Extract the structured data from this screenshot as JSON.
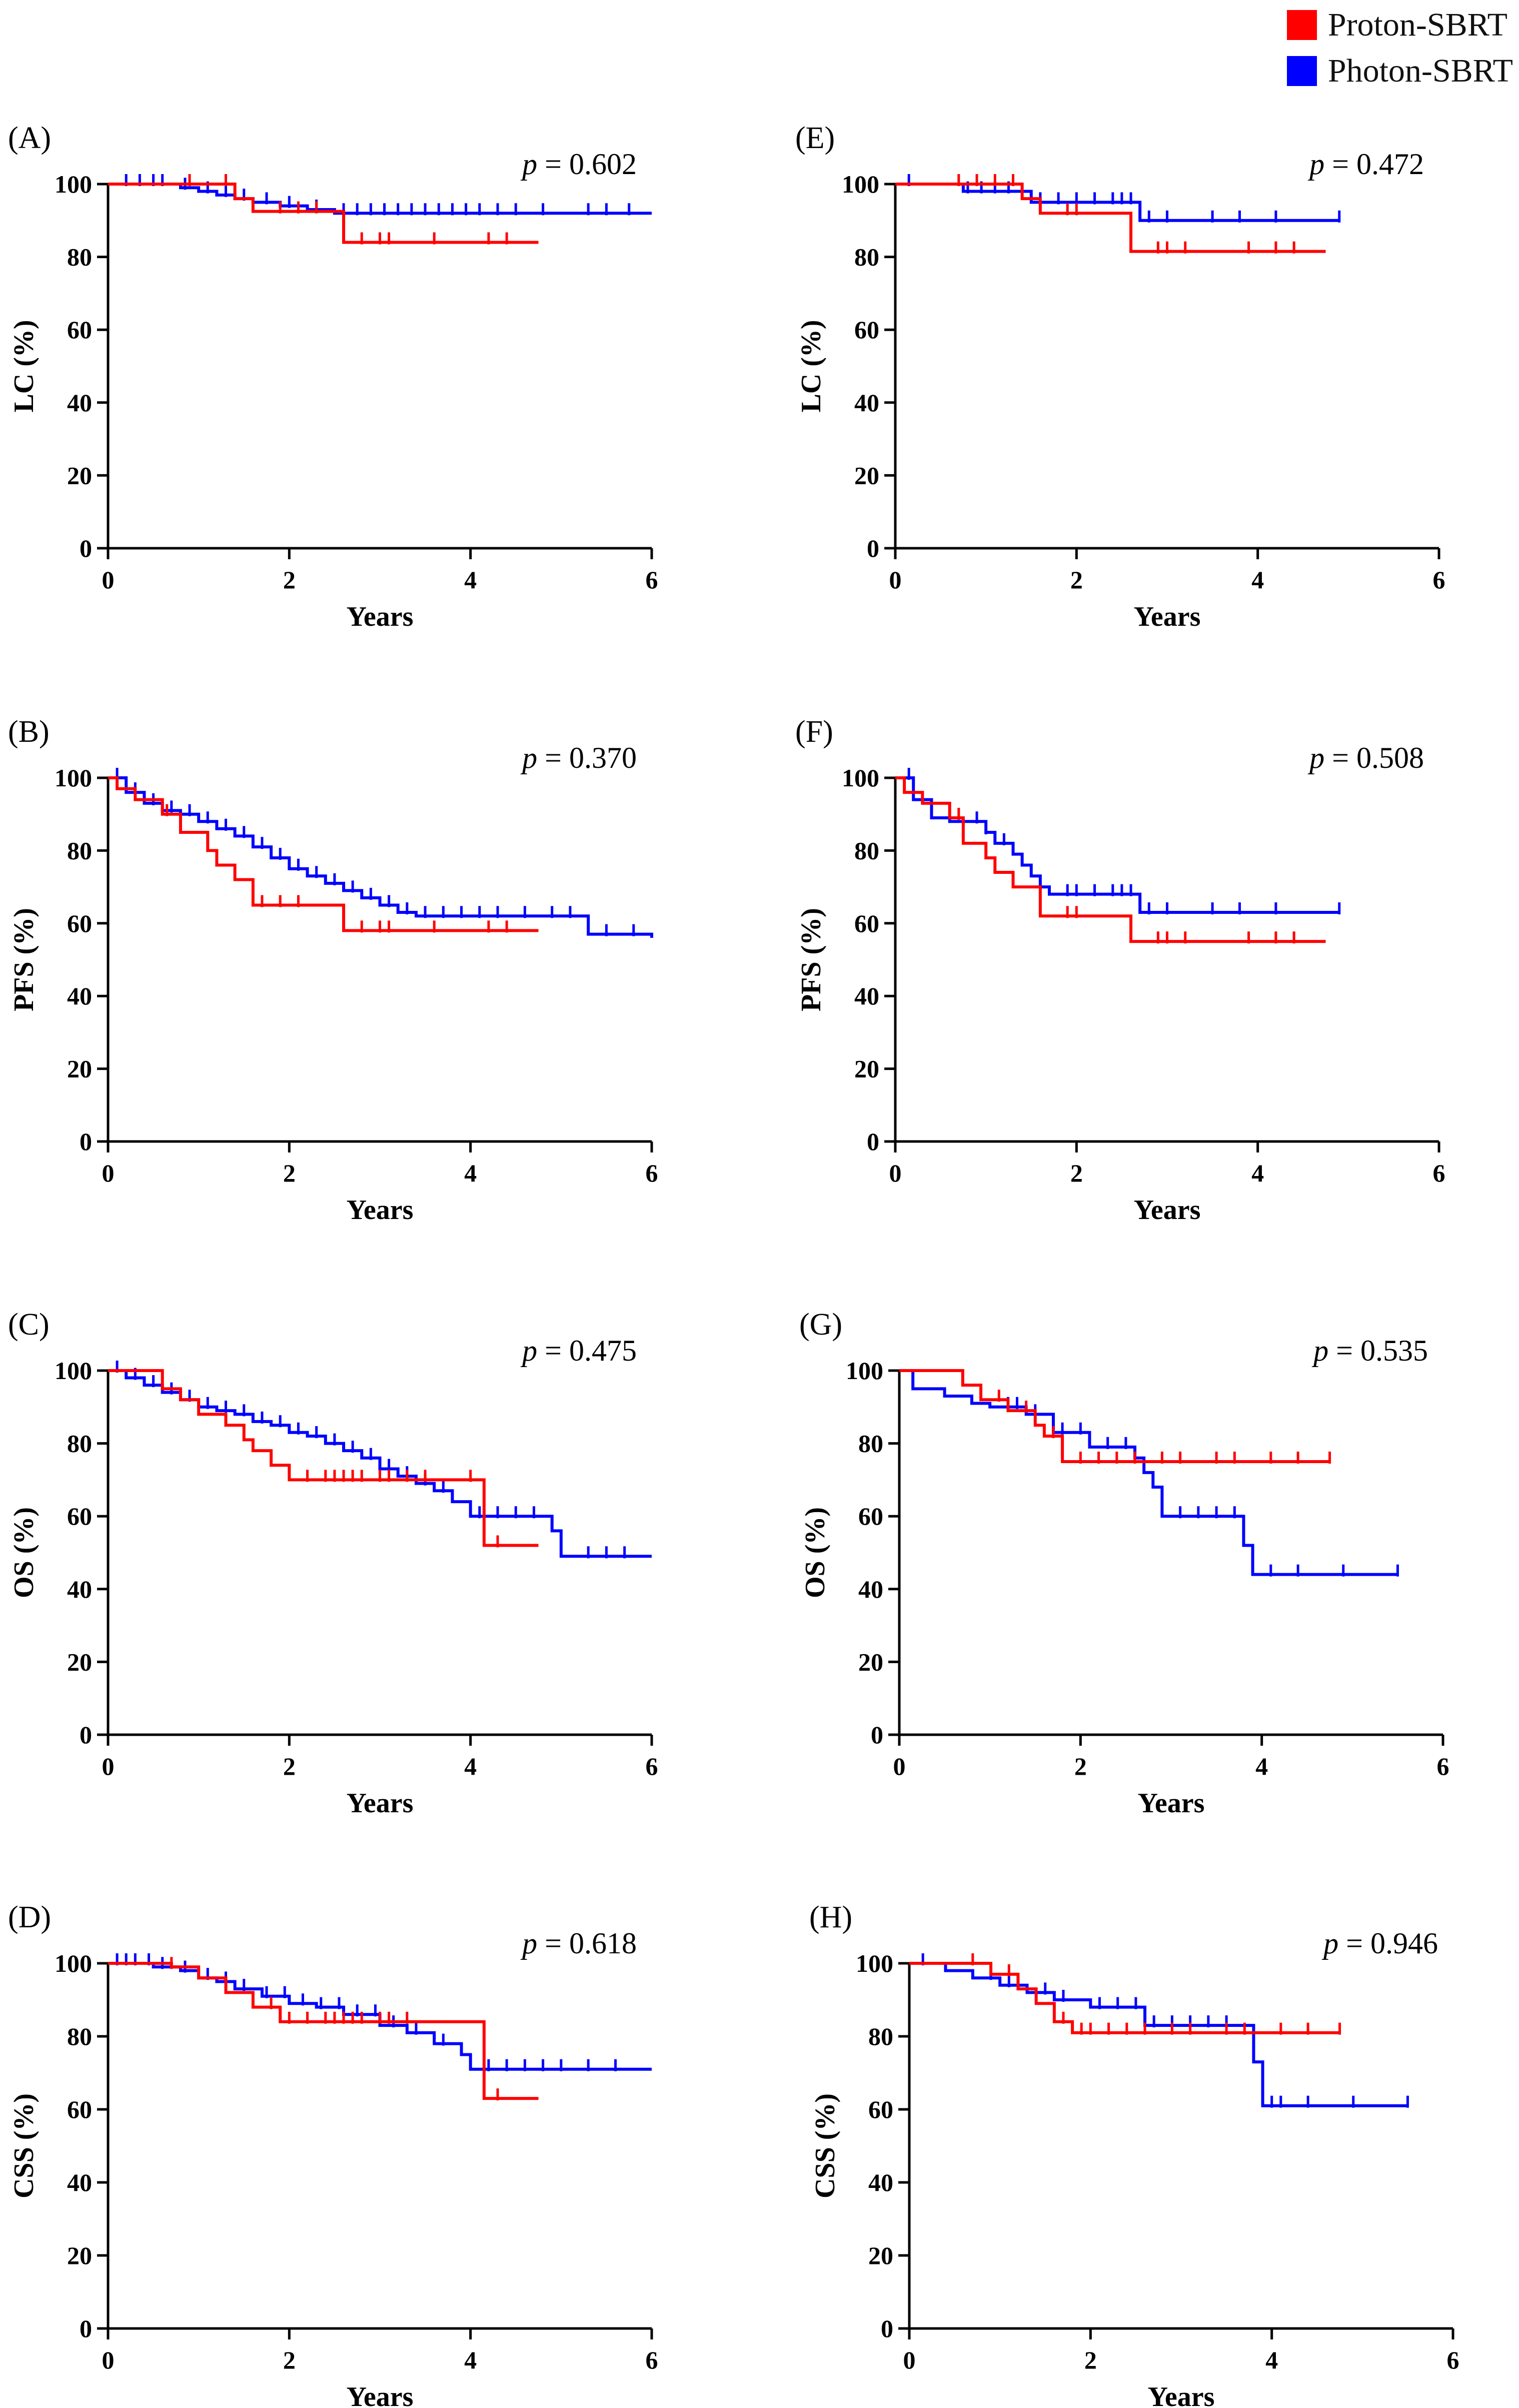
{
  "legend": [
    {
      "label": "Proton-SBRT",
      "color": "#ff0000"
    },
    {
      "label": "Photon-SBRT",
      "color": "#0000ff"
    }
  ],
  "colors": {
    "proton": "#ff0000",
    "photon": "#0000ff",
    "axis": "#000000"
  },
  "chart_data": [
    {
      "panel": "(A)",
      "type": "line",
      "subtype": "kaplan-meier",
      "p_prefix": "p",
      "p_value": "= 0.602",
      "xlabel": "Years",
      "ylabel": "LC (%)",
      "xlim": [
        0,
        6
      ],
      "ylim": [
        0,
        100
      ],
      "xticks": [
        "0",
        "2",
        "4",
        "6"
      ],
      "yticks": [
        "0",
        "20",
        "40",
        "60",
        "80",
        "100"
      ],
      "series": [
        {
          "name": "Proton-SBRT",
          "x": [
            0,
            1.4,
            1.6,
            2.6,
            4.75
          ],
          "y": [
            100,
            96,
            92.5,
            84,
            84
          ],
          "censor_x": [
            0.9,
            1.3,
            1.9,
            2.1,
            2.3,
            2.8,
            3.0,
            3.1,
            3.6,
            4.2,
            4.4
          ]
        },
        {
          "name": "Photon-SBRT",
          "x": [
            0,
            0.8,
            1.0,
            1.2,
            1.4,
            1.6,
            1.9,
            2.2,
            2.5,
            6.0
          ],
          "y": [
            100,
            99,
            98,
            97,
            96,
            95,
            94,
            93,
            92,
            92
          ],
          "censor_x": [
            0.2,
            0.35,
            0.5,
            0.6,
            0.85,
            1.1,
            1.3,
            1.5,
            1.75,
            2.0,
            2.3,
            2.6,
            2.75,
            2.9,
            3.05,
            3.2,
            3.35,
            3.5,
            3.65,
            3.8,
            3.95,
            4.1,
            4.3,
            4.5,
            4.8,
            5.3,
            5.5,
            5.75
          ]
        }
      ]
    },
    {
      "panel": "(B)",
      "type": "line",
      "subtype": "kaplan-meier",
      "p_prefix": "p",
      "p_value": "= 0.370",
      "xlabel": "Years",
      "ylabel": "PFS (%)",
      "xlim": [
        0,
        6
      ],
      "ylim": [
        0,
        100
      ],
      "xticks": [
        "0",
        "2",
        "4",
        "6"
      ],
      "yticks": [
        "0",
        "20",
        "40",
        "60",
        "80",
        "100"
      ],
      "series": [
        {
          "name": "Proton-SBRT",
          "x": [
            0,
            0.1,
            0.3,
            0.6,
            0.8,
            1.1,
            1.2,
            1.4,
            1.6,
            2.6,
            4.75
          ],
          "y": [
            100,
            97,
            94,
            90,
            85,
            80,
            76,
            72,
            65,
            58,
            58
          ],
          "censor_x": [
            0.65,
            1.7,
            1.9,
            2.1,
            2.8,
            3.0,
            3.1,
            3.6,
            4.2,
            4.4
          ]
        },
        {
          "name": "Photon-SBRT",
          "x": [
            0,
            0.2,
            0.4,
            0.6,
            0.8,
            1.0,
            1.2,
            1.4,
            1.6,
            1.8,
            2.0,
            2.2,
            2.4,
            2.6,
            2.8,
            3.0,
            3.2,
            3.4,
            5.3,
            6.0
          ],
          "y": [
            100,
            96,
            93,
            91,
            90,
            88,
            86,
            84,
            81,
            78,
            75,
            73,
            71,
            69,
            67,
            65,
            63,
            62,
            57,
            56
          ],
          "censor_x": [
            0.1,
            0.3,
            0.5,
            0.7,
            0.9,
            1.1,
            1.3,
            1.5,
            1.7,
            1.9,
            2.1,
            2.3,
            2.5,
            2.7,
            2.9,
            3.1,
            3.3,
            3.5,
            3.7,
            3.9,
            4.1,
            4.3,
            4.6,
            4.9,
            5.1,
            5.5,
            5.8
          ]
        }
      ]
    },
    {
      "panel": "(C)",
      "type": "line",
      "subtype": "kaplan-meier",
      "p_prefix": "p",
      "p_value": "= 0.475",
      "xlabel": "Years",
      "ylabel": "OS (%)",
      "xlim": [
        0,
        6
      ],
      "ylim": [
        0,
        100
      ],
      "xticks": [
        "0",
        "2",
        "4",
        "6"
      ],
      "yticks": [
        "0",
        "20",
        "40",
        "60",
        "80",
        "100"
      ],
      "series": [
        {
          "name": "Proton-SBRT",
          "x": [
            0,
            0.6,
            0.8,
            1.0,
            1.3,
            1.5,
            1.6,
            1.8,
            2.0,
            4.15,
            4.75
          ],
          "y": [
            100,
            95,
            92,
            88,
            85,
            81,
            78,
            74,
            70,
            52,
            52
          ],
          "censor_x": [
            2.2,
            2.4,
            2.5,
            2.6,
            2.7,
            2.8,
            3.0,
            3.1,
            3.3,
            3.5,
            4.0,
            4.3
          ]
        },
        {
          "name": "Photon-SBRT",
          "x": [
            0,
            0.2,
            0.4,
            0.6,
            0.8,
            1.0,
            1.2,
            1.4,
            1.6,
            1.8,
            2.0,
            2.2,
            2.4,
            2.6,
            2.8,
            3.0,
            3.2,
            3.4,
            3.6,
            3.8,
            4.0,
            4.9,
            5.0,
            6.0
          ],
          "y": [
            100,
            98,
            96,
            94,
            92,
            90,
            89,
            88,
            86,
            85,
            83,
            82,
            80,
            78,
            76,
            73,
            71,
            69,
            67,
            64,
            60,
            56,
            49,
            49
          ],
          "censor_x": [
            0.1,
            0.3,
            0.5,
            0.7,
            0.9,
            1.1,
            1.3,
            1.5,
            1.7,
            1.9,
            2.1,
            2.3,
            2.5,
            2.7,
            2.9,
            3.1,
            3.3,
            3.5,
            3.7,
            4.1,
            4.3,
            4.5,
            4.7,
            5.3,
            5.5,
            5.7
          ]
        }
      ]
    },
    {
      "panel": "(D)",
      "type": "line",
      "subtype": "kaplan-meier",
      "p_prefix": "p",
      "p_value": "= 0.618",
      "xlabel": "Years",
      "ylabel": "CSS (%)",
      "xlim": [
        0,
        6
      ],
      "ylim": [
        0,
        100
      ],
      "xticks": [
        "0",
        "2",
        "4",
        "6"
      ],
      "yticks": [
        "0",
        "20",
        "40",
        "60",
        "80",
        "100"
      ],
      "series": [
        {
          "name": "Proton-SBRT",
          "x": [
            0,
            0.7,
            1.0,
            1.3,
            1.6,
            1.9,
            4.15,
            4.75
          ],
          "y": [
            100,
            99,
            96,
            92,
            88,
            84,
            63,
            63
          ],
          "censor_x": [
            0.7,
            1.8,
            2.0,
            2.2,
            2.4,
            2.5,
            2.6,
            2.7,
            2.8,
            3.0,
            3.1,
            3.3,
            4.3
          ]
        },
        {
          "name": "Photon-SBRT",
          "x": [
            0,
            0.5,
            0.8,
            1.0,
            1.2,
            1.4,
            1.7,
            2.0,
            2.3,
            2.6,
            3.0,
            3.3,
            3.6,
            3.9,
            4.0,
            6.0
          ],
          "y": [
            100,
            99,
            98,
            96,
            95,
            93,
            91,
            89,
            88,
            86,
            83,
            81,
            78,
            75,
            71,
            71
          ],
          "censor_x": [
            0.1,
            0.2,
            0.3,
            0.45,
            0.6,
            0.85,
            1.1,
            1.3,
            1.5,
            1.75,
            1.95,
            2.15,
            2.35,
            2.55,
            2.75,
            2.95,
            3.15,
            3.4,
            3.7,
            4.2,
            4.4,
            4.6,
            4.8,
            5.0,
            5.3,
            5.6
          ]
        }
      ]
    },
    {
      "panel": "(E)",
      "type": "line",
      "subtype": "kaplan-meier",
      "p_prefix": "p",
      "p_value": "= 0.472",
      "xlabel": "Years",
      "ylabel": "LC (%)",
      "xlim": [
        0,
        6
      ],
      "ylim": [
        0,
        100
      ],
      "xticks": [
        "0",
        "2",
        "4",
        "6"
      ],
      "yticks": [
        "0",
        "20",
        "40",
        "60",
        "80",
        "100"
      ],
      "series": [
        {
          "name": "Proton-SBRT",
          "x": [
            0,
            1.4,
            1.6,
            2.6,
            4.75
          ],
          "y": [
            100,
            96,
            92,
            81.5,
            81.5
          ],
          "censor_x": [
            0.7,
            0.9,
            1.1,
            1.3,
            1.9,
            2.0,
            2.9,
            3.0,
            3.2,
            3.9,
            4.2,
            4.4
          ]
        },
        {
          "name": "Photon-SBRT",
          "x": [
            0,
            0.75,
            1.5,
            2.7,
            4.9
          ],
          "y": [
            100,
            98,
            95,
            90,
            90
          ],
          "censor_x": [
            0.15,
            0.8,
            0.95,
            1.1,
            1.25,
            1.6,
            1.8,
            2.0,
            2.2,
            2.4,
            2.5,
            2.6,
            2.8,
            3.0,
            3.5,
            3.8,
            4.2,
            4.9
          ]
        }
      ]
    },
    {
      "panel": "(F)",
      "type": "line",
      "subtype": "kaplan-meier",
      "p_prefix": "p",
      "p_value": "= 0.508",
      "xlabel": "Years",
      "ylabel": "PFS (%)",
      "xlim": [
        0,
        6
      ],
      "ylim": [
        0,
        100
      ],
      "xticks": [
        "0",
        "2",
        "4",
        "6"
      ],
      "yticks": [
        "0",
        "20",
        "40",
        "60",
        "80",
        "100"
      ],
      "series": [
        {
          "name": "Proton-SBRT",
          "x": [
            0,
            0.1,
            0.3,
            0.6,
            0.75,
            1.0,
            1.1,
            1.3,
            1.6,
            2.6,
            4.75
          ],
          "y": [
            100,
            96,
            93,
            89,
            82,
            78,
            74,
            70,
            62,
            55,
            55
          ],
          "censor_x": [
            0.7,
            1.9,
            2.0,
            2.9,
            3.0,
            3.2,
            3.9,
            4.2,
            4.4
          ]
        },
        {
          "name": "Photon-SBRT",
          "x": [
            0,
            0.2,
            0.4,
            0.6,
            1.0,
            1.1,
            1.3,
            1.4,
            1.5,
            1.6,
            1.7,
            2.7,
            4.9
          ],
          "y": [
            100,
            94,
            89,
            88,
            85,
            82,
            79,
            76,
            73,
            70,
            68,
            63,
            63
          ],
          "censor_x": [
            0.15,
            0.9,
            1.0,
            1.2,
            1.9,
            2.0,
            2.2,
            2.4,
            2.5,
            2.6,
            2.8,
            3.0,
            3.5,
            3.8,
            4.2,
            4.9
          ]
        }
      ]
    },
    {
      "panel": "(G)",
      "type": "line",
      "subtype": "kaplan-meier",
      "p_prefix": "p",
      "p_value": "= 0.535",
      "xlabel": "Years",
      "ylabel": "OS (%)",
      "xlim": [
        0,
        6
      ],
      "ylim": [
        0,
        100
      ],
      "xticks": [
        "0",
        "2",
        "4",
        "6"
      ],
      "yticks": [
        "0",
        "20",
        "40",
        "60",
        "80",
        "100"
      ],
      "series": [
        {
          "name": "Proton-SBRT",
          "x": [
            0,
            0.7,
            0.9,
            1.2,
            1.5,
            1.6,
            1.8,
            4.75
          ],
          "y": [
            100,
            96,
            92,
            89,
            85,
            82,
            75,
            75
          ],
          "censor_x": [
            1.1,
            1.4,
            1.7,
            2.0,
            2.2,
            2.4,
            2.6,
            2.9,
            3.1,
            3.5,
            3.7,
            4.1,
            4.4,
            4.75
          ]
        },
        {
          "name": "Photon-SBRT",
          "x": [
            0,
            0.15,
            0.5,
            0.8,
            1.0,
            1.4,
            1.7,
            2.1,
            2.6,
            2.7,
            2.8,
            2.9,
            3.8,
            3.9,
            5.5
          ],
          "y": [
            100,
            95,
            93,
            91,
            90,
            88,
            83,
            79,
            76,
            72,
            68,
            60,
            52,
            44,
            44
          ],
          "censor_x": [
            1.2,
            1.3,
            1.5,
            1.8,
            2.0,
            2.3,
            2.5,
            3.1,
            3.3,
            3.5,
            3.7,
            4.1,
            4.4,
            4.9,
            5.5
          ]
        }
      ]
    },
    {
      "panel": "(H)",
      "type": "line",
      "subtype": "kaplan-meier",
      "p_prefix": "p",
      "p_value": "= 0.946",
      "xlabel": "Years",
      "ylabel": "CSS (%)",
      "xlim": [
        0,
        6
      ],
      "ylim": [
        0,
        100
      ],
      "xticks": [
        "0",
        "2",
        "4",
        "6"
      ],
      "yticks": [
        "0",
        "20",
        "40",
        "60",
        "80",
        "100"
      ],
      "series": [
        {
          "name": "Proton-SBRT",
          "x": [
            0,
            0.9,
            1.2,
            1.4,
            1.6,
            1.8,
            4.75
          ],
          "y": [
            100,
            97,
            93,
            89,
            84,
            81,
            81
          ],
          "censor_x": [
            0.7,
            1.1,
            1.7,
            1.9,
            2.0,
            2.2,
            2.4,
            2.6,
            2.9,
            3.1,
            3.5,
            3.7,
            4.1,
            4.4,
            4.75
          ]
        },
        {
          "name": "Photon-SBRT",
          "x": [
            0,
            0.4,
            0.7,
            1.0,
            1.3,
            1.6,
            2.0,
            2.6,
            3.8,
            3.9,
            5.5
          ],
          "y": [
            100,
            98,
            96,
            94,
            92,
            90,
            88,
            83,
            73,
            61,
            61
          ],
          "censor_x": [
            0.15,
            0.9,
            1.1,
            1.5,
            1.7,
            2.1,
            2.3,
            2.5,
            2.7,
            2.9,
            3.1,
            3.3,
            3.5,
            4.0,
            4.1,
            4.4,
            4.9,
            5.5
          ]
        }
      ]
    }
  ]
}
